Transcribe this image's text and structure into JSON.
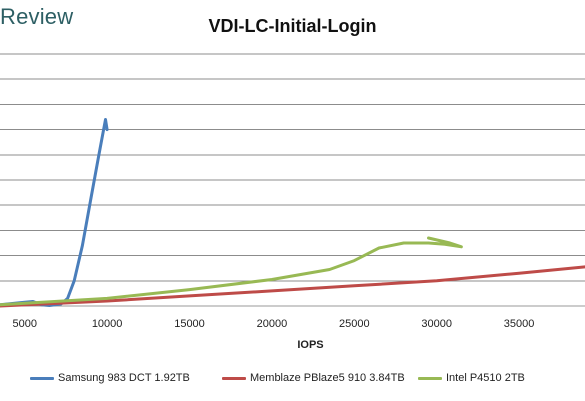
{
  "header": {
    "brand": "Review"
  },
  "chart_data": {
    "type": "line",
    "title": "VDI-LC-Initial-Login",
    "xlabel": "IOPS",
    "ylabel": "",
    "xlim": [
      3500,
      39000
    ],
    "ylim": [
      0,
      10
    ],
    "x_ticks": [
      5000,
      10000,
      15000,
      20000,
      25000,
      30000,
      35000
    ],
    "y_gridlines": [
      0,
      1,
      2,
      3,
      4,
      5,
      6,
      7,
      8,
      9,
      10
    ],
    "y_tick_labels_visible": false,
    "grid": true,
    "legend_position": "bottom",
    "series": [
      {
        "name": "Samsung 983 DCT 1.92TB",
        "color": "#4a7ebb",
        "points": [
          [
            3500,
            0.05
          ],
          [
            5000,
            0.15
          ],
          [
            5500,
            0.18
          ],
          [
            6000,
            0.05
          ],
          [
            6500,
            0.02
          ],
          [
            7200,
            0.08
          ],
          [
            7600,
            0.3
          ],
          [
            8000,
            1.0
          ],
          [
            8500,
            2.4
          ],
          [
            9000,
            4.2
          ],
          [
            9500,
            6.0
          ],
          [
            9900,
            7.4
          ],
          [
            10000,
            7.0
          ]
        ]
      },
      {
        "name": "Memblaze PBlaze5 910 3.84TB",
        "color": "#be4b48",
        "points": [
          [
            3500,
            0.0
          ],
          [
            10000,
            0.2
          ],
          [
            15000,
            0.4
          ],
          [
            20000,
            0.6
          ],
          [
            25000,
            0.8
          ],
          [
            30000,
            1.0
          ],
          [
            35000,
            1.3
          ],
          [
            39000,
            1.55
          ]
        ]
      },
      {
        "name": "Intel P4510 2TB",
        "color": "#98b954",
        "points": [
          [
            3500,
            0.05
          ],
          [
            10000,
            0.3
          ],
          [
            15000,
            0.65
          ],
          [
            20000,
            1.05
          ],
          [
            23500,
            1.45
          ],
          [
            25000,
            1.8
          ],
          [
            26500,
            2.3
          ],
          [
            28000,
            2.5
          ],
          [
            29500,
            2.5
          ],
          [
            30500,
            2.45
          ],
          [
            31500,
            2.35
          ],
          [
            30800,
            2.5
          ],
          [
            29500,
            2.7
          ]
        ]
      }
    ]
  }
}
